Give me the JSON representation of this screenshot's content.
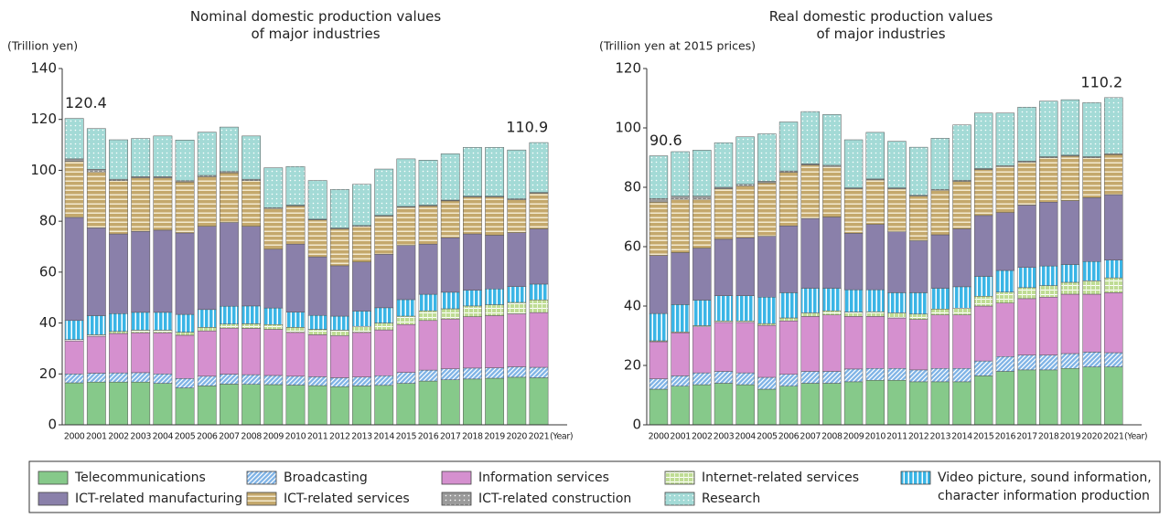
{
  "chart_data": [
    {
      "type": "stacked_bar",
      "title": "Nominal domestic production values\nof major industries",
      "y_label": "(Trillion yen)",
      "x_label": "(Year)",
      "categories": [
        "2000",
        "2001",
        "2002",
        "2003",
        "2004",
        "2005",
        "2006",
        "2007",
        "2008",
        "2009",
        "2010",
        "2011",
        "2012",
        "2013",
        "2014",
        "2015",
        "2016",
        "2017",
        "2018",
        "2019",
        "2020",
        "2021"
      ],
      "ylim": [
        0,
        140
      ],
      "yticks": [
        0,
        20,
        40,
        60,
        80,
        100,
        120,
        140
      ],
      "annotations": [
        "120.4",
        "110.9"
      ],
      "series": [
        {
          "name": "Telecommunications",
          "color": "#86c98a",
          "pattern": "solid",
          "values": [
            16.5,
            16.8,
            16.8,
            16.8,
            16.3,
            14.5,
            15.3,
            16,
            15.9,
            15.8,
            15.6,
            15.4,
            15,
            15.3,
            15.5,
            16.3,
            17.2,
            17.7,
            18,
            18.3,
            18.7,
            18.5
          ]
        },
        {
          "name": "Broadcasting",
          "color": "#7fb3e6",
          "pattern": "diagonal",
          "values": [
            3.5,
            3.5,
            3.6,
            3.7,
            3.7,
            3.7,
            3.8,
            3.9,
            3.8,
            3.6,
            3.5,
            3.5,
            3.5,
            3.5,
            3.8,
            4.3,
            4.3,
            4.3,
            4.3,
            4.1,
            4.1,
            4.1
          ]
        },
        {
          "name": "Information services",
          "color": "#d590cf",
          "pattern": "solid",
          "values": [
            13,
            14.5,
            15.5,
            15.7,
            16.2,
            17,
            17.8,
            18.1,
            18.2,
            18.1,
            17.2,
            16.5,
            16.5,
            17.5,
            18,
            18.8,
            19.5,
            19.6,
            20.2,
            20.5,
            20.8,
            21.5
          ]
        },
        {
          "name": "Internet-related services",
          "color": "#bfdc94",
          "pattern": "grid",
          "values": [
            0.5,
            0.6,
            0.8,
            1,
            1,
            1.2,
            1.4,
            1.6,
            1.8,
            1.9,
            2,
            2.1,
            2.2,
            2.4,
            2.7,
            3.3,
            3.8,
            4,
            4.2,
            4.3,
            4.5,
            5
          ]
        },
        {
          "name": "Video picture, sound information,\ncharacter information production",
          "color": "#3ab5e6",
          "pattern": "vertical",
          "values": [
            7.5,
            7.5,
            7,
            7,
            7,
            7,
            7,
            7,
            7,
            6.5,
            6,
            5.5,
            5.5,
            6,
            6,
            6.5,
            6.5,
            6.5,
            6.2,
            6.2,
            6.2,
            6.2
          ]
        },
        {
          "name": "ICT-related manufacturing",
          "color": "#8a80aa",
          "pattern": "solid",
          "values": [
            40.5,
            34.5,
            31.3,
            31.8,
            32.3,
            32,
            32.7,
            32.9,
            31.3,
            23.1,
            26.7,
            23,
            19.8,
            19.3,
            21,
            21.3,
            19.7,
            21.4,
            22.1,
            21.1,
            21.2,
            21.7
          ]
        },
        {
          "name": "ICT-related services",
          "color": "#c4a86c",
          "pattern": "horizontal",
          "values": [
            22,
            22,
            21,
            21,
            20.5,
            20,
            19.5,
            19.5,
            18,
            16,
            15,
            14.5,
            14.5,
            14,
            15,
            15,
            15,
            14.5,
            14.5,
            15,
            13,
            14
          ]
        },
        {
          "name": "ICT-related construction",
          "color": "#9a9a9a",
          "pattern": "dots",
          "values": [
            1,
            1,
            0.5,
            0.5,
            0.5,
            0.5,
            0.5,
            0.5,
            0.5,
            0.3,
            0.3,
            0.3,
            0.3,
            0.3,
            0.3,
            0.3,
            0.3,
            0.3,
            0.3,
            0.3,
            0.3,
            0.3
          ]
        },
        {
          "name": "Research",
          "color": "#a3dad6",
          "pattern": "dots",
          "values": [
            15.9,
            16,
            15.5,
            15,
            16,
            16,
            17,
            17.5,
            17,
            15.7,
            15.2,
            15.2,
            15.2,
            16.2,
            18.2,
            18.7,
            17.7,
            18.2,
            19.2,
            19.2,
            19.2,
            19.6
          ]
        }
      ]
    },
    {
      "type": "stacked_bar",
      "title": "Real domestic production values\nof major industries",
      "y_label": "(Trillion yen at 2015 prices)",
      "x_label": "(Year)",
      "categories": [
        "2000",
        "2001",
        "2002",
        "2003",
        "2004",
        "2005",
        "2006",
        "2007",
        "2008",
        "2009",
        "2010",
        "2011",
        "2012",
        "2013",
        "2014",
        "2015",
        "2016",
        "2017",
        "2018",
        "2019",
        "2020",
        "2021"
      ],
      "ylim": [
        0,
        120
      ],
      "yticks": [
        0,
        20,
        40,
        60,
        80,
        100,
        120
      ],
      "annotations": [
        "90.6",
        "110.2"
      ],
      "series": [
        {
          "color": "#86c98a",
          "pattern": "solid",
          "values": [
            12,
            13,
            13.5,
            14,
            13.5,
            12,
            13,
            14,
            14,
            14.5,
            15,
            15,
            14.5,
            14.5,
            14.5,
            16.5,
            18,
            18.5,
            18.5,
            19,
            19.5,
            19.5
          ]
        },
        {
          "color": "#7fb3e6",
          "pattern": "diagonal",
          "values": [
            3.5,
            3.5,
            4,
            4,
            4,
            4,
            4,
            4,
            4,
            4.3,
            4,
            4,
            4,
            4.5,
            4.5,
            5,
            5,
            5,
            5,
            5,
            5,
            4.8
          ]
        },
        {
          "color": "#d590cf",
          "pattern": "solid",
          "values": [
            12.5,
            14.5,
            15.5,
            16.5,
            17,
            17.5,
            18,
            18.5,
            19,
            17.7,
            17.5,
            17,
            17,
            18,
            18,
            18.5,
            18,
            19,
            19.5,
            20,
            19.5,
            20.2
          ]
        },
        {
          "color": "#bfdc94",
          "pattern": "grid",
          "values": [
            0.3,
            0.3,
            0.4,
            0.5,
            0.5,
            0.6,
            1,
            1.2,
            1.4,
            1.5,
            1.6,
            1.7,
            1.8,
            2,
            2.3,
            3.3,
            3.7,
            3.7,
            3.9,
            4,
            4.5,
            5
          ]
        },
        {
          "color": "#3ab5e6",
          "pattern": "vertical",
          "values": [
            9.2,
            9.2,
            8.6,
            8.5,
            8.5,
            8.9,
            8.5,
            8.3,
            7.6,
            7.5,
            7.4,
            6.8,
            7.2,
            7,
            7.2,
            6.7,
            7.3,
            6.8,
            6.6,
            6,
            6.5,
            6
          ]
        },
        {
          "color": "#8a80aa",
          "pattern": "solid",
          "values": [
            19.5,
            17.5,
            17.5,
            19,
            19.5,
            20.5,
            22.5,
            23.5,
            24,
            19,
            22,
            20.5,
            17.5,
            18,
            19.5,
            20.5,
            19.5,
            21,
            21.5,
            21.5,
            21.5,
            22
          ]
        },
        {
          "color": "#c4a86c",
          "pattern": "horizontal",
          "values": [
            18,
            18,
            16.5,
            17,
            17.5,
            18,
            18,
            18,
            17,
            15,
            15,
            14.5,
            15,
            15,
            16,
            15.5,
            15.5,
            14.5,
            15,
            15,
            13.5,
            13.5
          ]
        },
        {
          "color": "#9a9a9a",
          "pattern": "dots",
          "values": [
            1.2,
            1,
            1,
            0.5,
            0.5,
            0.5,
            0.5,
            0.4,
            0.4,
            0.3,
            0.3,
            0.3,
            0.3,
            0.3,
            0.3,
            0.3,
            0.3,
            0.3,
            0.3,
            0.3,
            0.3,
            0.3
          ]
        },
        {
          "color": "#a3dad6",
          "pattern": "dots",
          "values": [
            14.4,
            15,
            15.5,
            15,
            16,
            16,
            16.5,
            17.6,
            17.1,
            16.2,
            15.7,
            15.7,
            16.2,
            17.2,
            18.7,
            18.7,
            17.7,
            18.2,
            18.7,
            18.7,
            18.2,
            18.9
          ]
        }
      ]
    }
  ]
}
